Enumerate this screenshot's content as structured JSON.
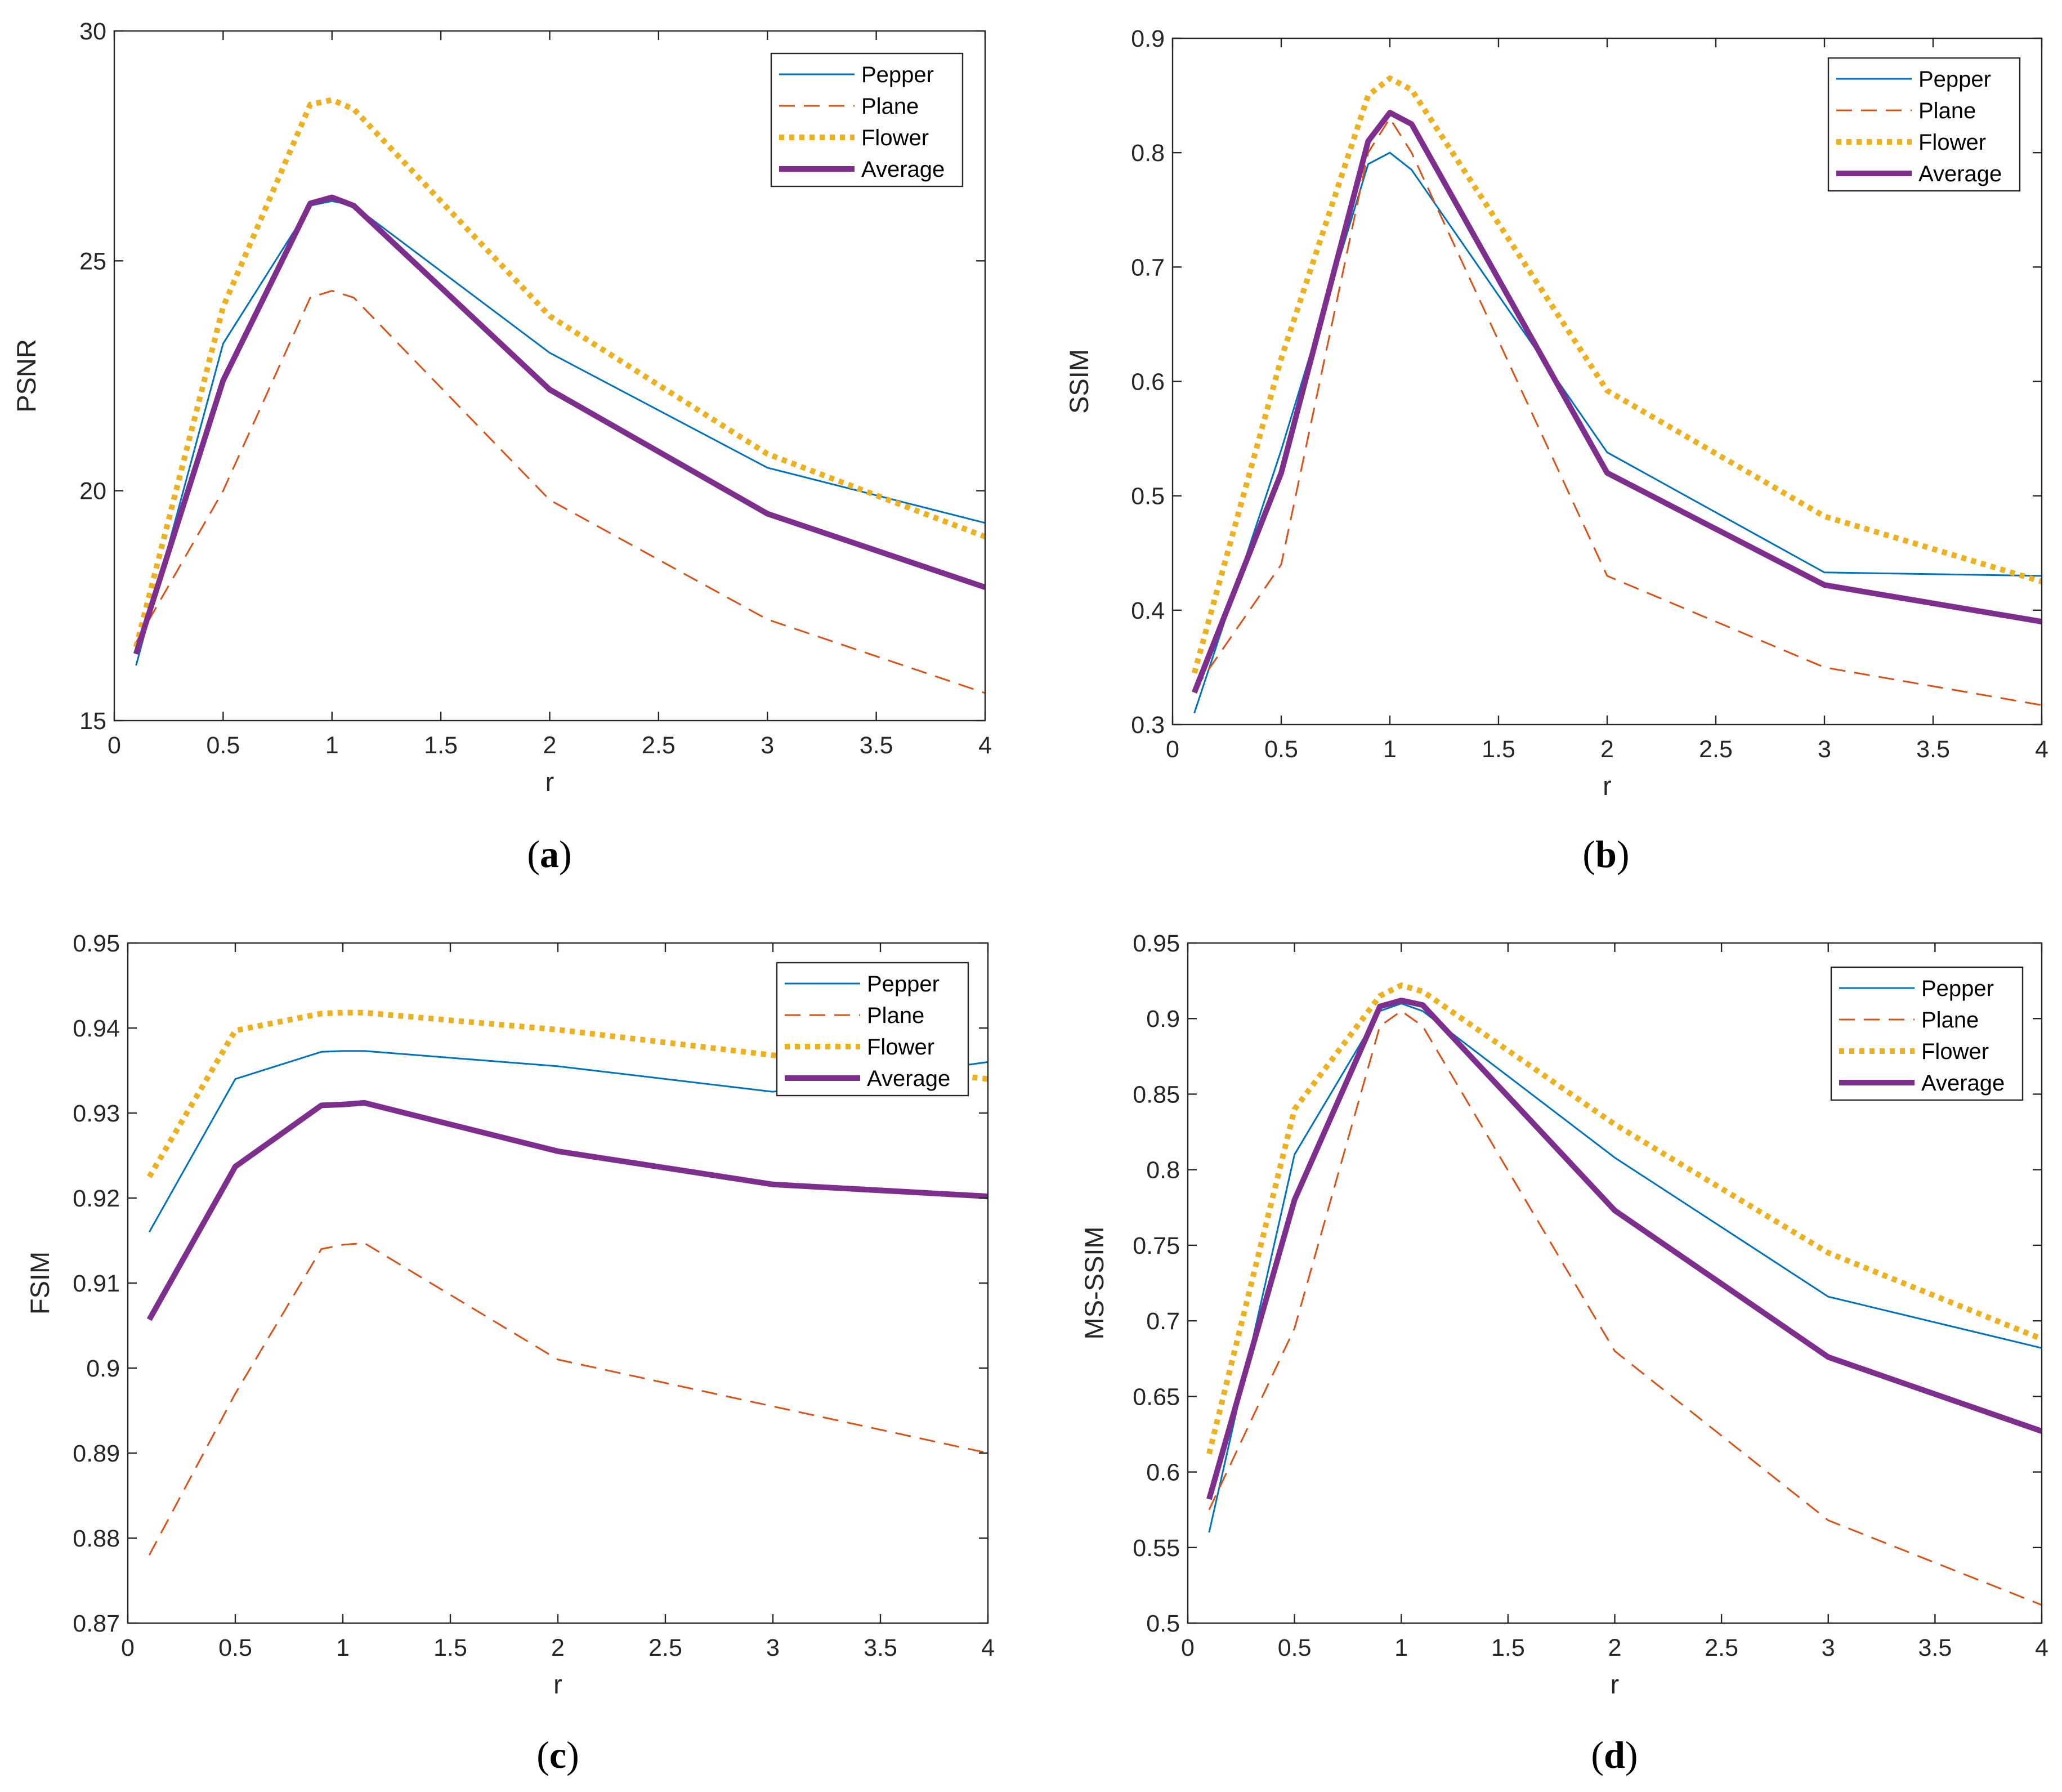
{
  "chart_data": [
    {
      "panel": "a",
      "caption_letter": "a",
      "type": "line",
      "title": "",
      "xlabel": "r",
      "ylabel": "PSNR",
      "xlim": [
        0,
        4
      ],
      "ylim": [
        15,
        30
      ],
      "xticks": [
        0,
        0.5,
        1,
        1.5,
        2,
        2.5,
        3,
        3.5,
        4
      ],
      "xtick_labels": [
        "0",
        "0.5",
        "1",
        "1.5",
        "2",
        "2.5",
        "3",
        "3.5",
        "4"
      ],
      "yticks": [
        15,
        20,
        25,
        30
      ],
      "ytick_labels": [
        "15",
        "20",
        "25",
        "30"
      ],
      "legend_position": "top-right",
      "x": [
        0.1,
        0.5,
        0.9,
        1.0,
        1.1,
        2,
        3,
        4
      ],
      "series": [
        {
          "name": "Pepper",
          "values": [
            16.2,
            23.2,
            26.2,
            26.3,
            26.2,
            23.0,
            20.5,
            19.3
          ]
        },
        {
          "name": "Plane",
          "values": [
            16.7,
            20.0,
            24.2,
            24.35,
            24.2,
            19.8,
            17.2,
            15.6
          ]
        },
        {
          "name": "Flower",
          "values": [
            16.6,
            24.0,
            28.4,
            28.5,
            28.3,
            23.8,
            20.8,
            19.0
          ]
        },
        {
          "name": "Average",
          "values": [
            16.45,
            22.4,
            26.25,
            26.38,
            26.2,
            22.2,
            19.5,
            17.9
          ]
        }
      ]
    },
    {
      "panel": "b",
      "caption_letter": "b",
      "type": "line",
      "title": "",
      "xlabel": "r",
      "ylabel": "SSIM",
      "xlim": [
        0,
        4
      ],
      "ylim": [
        0.3,
        0.9
      ],
      "xticks": [
        0,
        0.5,
        1,
        1.5,
        2,
        2.5,
        3,
        3.5,
        4
      ],
      "xtick_labels": [
        "0",
        "0.5",
        "1",
        "1.5",
        "2",
        "2.5",
        "3",
        "3.5",
        "4"
      ],
      "yticks": [
        0.3,
        0.4,
        0.5,
        0.6,
        0.7,
        0.8,
        0.9
      ],
      "ytick_labels": [
        "0.3",
        "0.4",
        "0.5",
        "0.6",
        "0.7",
        "0.8",
        "0.9"
      ],
      "legend_position": "top-right",
      "x": [
        0.1,
        0.5,
        0.9,
        1.0,
        1.1,
        2,
        3,
        4
      ],
      "series": [
        {
          "name": "Pepper",
          "values": [
            0.31,
            0.54,
            0.79,
            0.8,
            0.785,
            0.538,
            0.433,
            0.43
          ]
        },
        {
          "name": "Plane",
          "values": [
            0.33,
            0.44,
            0.8,
            0.83,
            0.8,
            0.43,
            0.35,
            0.317
          ]
        },
        {
          "name": "Flower",
          "values": [
            0.345,
            0.62,
            0.85,
            0.865,
            0.855,
            0.592,
            0.482,
            0.425
          ]
        },
        {
          "name": "Average",
          "values": [
            0.328,
            0.52,
            0.81,
            0.835,
            0.825,
            0.52,
            0.422,
            0.39
          ]
        }
      ]
    },
    {
      "panel": "c",
      "caption_letter": "c",
      "type": "line",
      "title": "",
      "xlabel": "r",
      "ylabel": "FSIM",
      "xlim": [
        0,
        4
      ],
      "ylim": [
        0.87,
        0.95
      ],
      "xticks": [
        0,
        0.5,
        1,
        1.5,
        2,
        2.5,
        3,
        3.5,
        4
      ],
      "xtick_labels": [
        "0",
        "0.5",
        "1",
        "1.5",
        "2",
        "2.5",
        "3",
        "3.5",
        "4"
      ],
      "yticks": [
        0.87,
        0.88,
        0.89,
        0.9,
        0.91,
        0.92,
        0.93,
        0.94,
        0.95
      ],
      "ytick_labels": [
        "0.87",
        "0.88",
        "0.89",
        "0.9",
        "0.91",
        "0.92",
        "0.93",
        "0.94",
        "0.95"
      ],
      "legend_position": "top-right",
      "x": [
        0.1,
        0.5,
        0.9,
        1.0,
        1.1,
        2,
        3,
        4
      ],
      "series": [
        {
          "name": "Pepper",
          "values": [
            0.916,
            0.934,
            0.9372,
            0.9373,
            0.9373,
            0.9355,
            0.9325,
            0.936
          ]
        },
        {
          "name": "Plane",
          "values": [
            0.878,
            0.897,
            0.914,
            0.9145,
            0.9147,
            0.901,
            0.8955,
            0.89
          ]
        },
        {
          "name": "Flower",
          "values": [
            0.9225,
            0.9397,
            0.9417,
            0.9418,
            0.9418,
            0.9398,
            0.9368,
            0.934
          ]
        },
        {
          "name": "Average",
          "values": [
            0.9057,
            0.9237,
            0.9309,
            0.931,
            0.9312,
            0.9255,
            0.9216,
            0.9202
          ]
        }
      ]
    },
    {
      "panel": "d",
      "caption_letter": "d",
      "type": "line",
      "title": "",
      "xlabel": "r",
      "ylabel": "MS-SSIM",
      "xlim": [
        0,
        4
      ],
      "ylim": [
        0.5,
        0.95
      ],
      "xticks": [
        0,
        0.5,
        1,
        1.5,
        2,
        2.5,
        3,
        3.5,
        4
      ],
      "xtick_labels": [
        "0",
        "0.5",
        "1",
        "1.5",
        "2",
        "2.5",
        "3",
        "3.5",
        "4"
      ],
      "yticks": [
        0.5,
        0.55,
        0.6,
        0.65,
        0.7,
        0.75,
        0.8,
        0.85,
        0.9,
        0.95
      ],
      "ytick_labels": [
        "0.5",
        "0.55",
        "0.6",
        "0.65",
        "0.7",
        "0.75",
        "0.8",
        "0.85",
        "0.9",
        "0.95"
      ],
      "legend_position": "top-right",
      "x": [
        0.1,
        0.5,
        0.9,
        1.0,
        1.1,
        2,
        3,
        4
      ],
      "series": [
        {
          "name": "Pepper",
          "values": [
            0.56,
            0.81,
            0.905,
            0.91,
            0.905,
            0.808,
            0.716,
            0.682
          ]
        },
        {
          "name": "Plane",
          "values": [
            0.575,
            0.695,
            0.895,
            0.905,
            0.895,
            0.68,
            0.568,
            0.512
          ]
        },
        {
          "name": "Flower",
          "values": [
            0.612,
            0.84,
            0.915,
            0.922,
            0.918,
            0.83,
            0.745,
            0.688
          ]
        },
        {
          "name": "Average",
          "values": [
            0.582,
            0.78,
            0.908,
            0.912,
            0.909,
            0.773,
            0.676,
            0.627
          ]
        }
      ]
    }
  ],
  "series_styles": {
    "Pepper": {
      "color": "#0072BD",
      "dash": ""
    },
    "Plane": {
      "color": "#D95319",
      "dash": "28 16"
    },
    "Flower": {
      "color": "#EDB120",
      "dash": "9 9"
    },
    "Average": {
      "color": "#7E2F8E",
      "dash": ""
    }
  }
}
